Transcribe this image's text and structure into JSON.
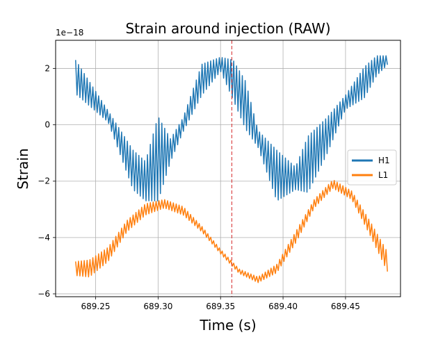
{
  "chart_data": {
    "type": "line",
    "title": "Strain around injection (RAW)",
    "xlabel": "Time (s)",
    "ylabel": "Strain",
    "y_offset_label": "1e−18",
    "xlim": [
      689.218,
      689.494
    ],
    "ylim": [
      -6.1,
      3.0
    ],
    "xticks": [
      689.25,
      689.3,
      689.35,
      689.4,
      689.45
    ],
    "xtick_labels": [
      "689.25",
      "689.30",
      "689.35",
      "689.40",
      "689.45"
    ],
    "yticks": [
      -6,
      -4,
      -2,
      0,
      2
    ],
    "ytick_labels": [
      "−6",
      "−4",
      "−2",
      "0",
      "2"
    ],
    "grid": true,
    "legend_position": "center-right",
    "injection_marker": {
      "x": 689.359,
      "color": "#d62728",
      "style": "dashed"
    },
    "series": [
      {
        "name": "H1",
        "color": "#1f77b4",
        "oscillation_period": 0.0023,
        "center": {
          "x": [
            689.234,
            689.26,
            689.28,
            689.29,
            689.3,
            689.31,
            689.32,
            689.335,
            689.35,
            689.36,
            689.37,
            689.38,
            689.395,
            689.41,
            689.42,
            689.435,
            689.45,
            689.465,
            689.475,
            689.484
          ],
          "y": [
            1.7,
            0.3,
            -1.6,
            -2.0,
            -1.2,
            -0.9,
            0.0,
            1.6,
            2.15,
            1.6,
            0.7,
            -0.5,
            -1.8,
            -1.9,
            -1.4,
            -0.4,
            0.8,
            1.5,
            2.1,
            2.3
          ]
        },
        "amplitude": {
          "x": [
            689.234,
            689.26,
            689.28,
            689.29,
            689.3,
            689.31,
            689.32,
            689.335,
            689.35,
            689.36,
            689.37,
            689.38,
            689.395,
            689.41,
            689.42,
            689.435,
            689.45,
            689.465,
            689.475,
            689.484
          ],
          "y": [
            0.6,
            0.2,
            0.7,
            0.7,
            1.5,
            0.4,
            0.25,
            0.55,
            0.25,
            0.7,
            0.85,
            0.3,
            0.9,
            0.4,
            1.0,
            0.65,
            0.25,
            0.55,
            0.35,
            0.15
          ]
        }
      },
      {
        "name": "L1",
        "color": "#ff7f0e",
        "oscillation_period": 0.0023,
        "center": {
          "x": [
            689.234,
            689.245,
            689.26,
            689.275,
            689.29,
            689.305,
            689.32,
            689.335,
            689.35,
            689.365,
            689.38,
            689.395,
            689.41,
            689.425,
            689.44,
            689.455,
            689.47,
            689.484
          ],
          "y": [
            -5.1,
            -5.1,
            -4.6,
            -3.6,
            -3.0,
            -2.8,
            -3.05,
            -3.7,
            -4.5,
            -5.2,
            -5.5,
            -5.1,
            -4.0,
            -2.8,
            -2.1,
            -2.5,
            -3.7,
            -4.9
          ]
        },
        "amplitude": {
          "x": [
            689.234,
            689.245,
            689.26,
            689.275,
            689.29,
            689.305,
            689.32,
            689.335,
            689.35,
            689.365,
            689.38,
            689.395,
            689.41,
            689.425,
            689.44,
            689.455,
            689.47,
            689.484
          ],
          "y": [
            0.25,
            0.3,
            0.25,
            0.2,
            0.2,
            0.15,
            0.15,
            0.1,
            0.08,
            0.08,
            0.1,
            0.15,
            0.2,
            0.15,
            0.15,
            0.15,
            0.25,
            0.35
          ]
        }
      }
    ]
  }
}
